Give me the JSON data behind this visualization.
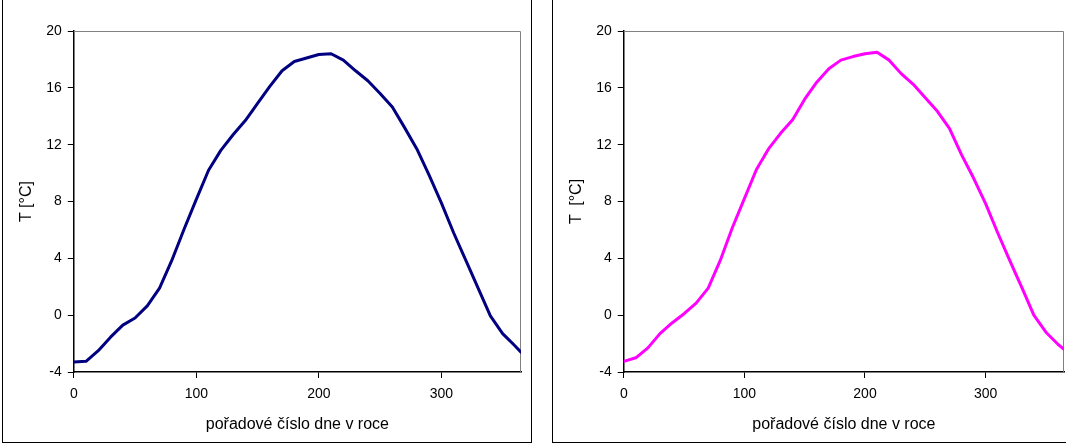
{
  "chart_data": [
    {
      "type": "line",
      "xlabel": "pořadové číslo dne v roce",
      "ylabel": "T [°C]",
      "xlim": [
        0,
        365
      ],
      "xticks": [
        0,
        100,
        200,
        300
      ],
      "ylim": [
        -4,
        20
      ],
      "yticks": [
        -4,
        0,
        4,
        8,
        12,
        16,
        20
      ],
      "grid": false,
      "legend": false,
      "marker": "none",
      "line_style": "solid",
      "x": [
        0,
        10,
        20,
        30,
        40,
        50,
        60,
        70,
        80,
        90,
        100,
        110,
        120,
        130,
        140,
        150,
        160,
        170,
        180,
        190,
        200,
        210,
        220,
        230,
        240,
        250,
        260,
        270,
        280,
        290,
        300,
        310,
        320,
        330,
        340,
        350,
        360,
        365
      ],
      "series": [
        {
          "color": "#000080",
          "values": [
            -3.3,
            -3.25,
            -2.5,
            -1.55,
            -0.7,
            -0.2,
            0.65,
            1.9,
            3.85,
            6.05,
            8.15,
            10.2,
            11.6,
            12.7,
            13.7,
            14.9,
            16.1,
            17.2,
            17.85,
            18.1,
            18.35,
            18.4,
            17.95,
            17.2,
            16.5,
            15.6,
            14.65,
            13.2,
            11.7,
            9.85,
            7.9,
            5.8,
            3.85,
            1.9,
            -0.05,
            -1.3,
            -2.15,
            -2.6
          ]
        }
      ]
    },
    {
      "type": "line",
      "xlabel": "pořadové číslo dne v roce",
      "ylabel": "T  [°C]",
      "xlim": [
        0,
        365
      ],
      "xticks": [
        0,
        100,
        200,
        300
      ],
      "ylim": [
        -4,
        20
      ],
      "yticks": [
        -4,
        0,
        4,
        8,
        12,
        16,
        20
      ],
      "grid": false,
      "legend": false,
      "marker": "none",
      "line_style": "solid",
      "x": [
        0,
        10,
        20,
        30,
        40,
        50,
        60,
        70,
        80,
        90,
        100,
        110,
        120,
        130,
        140,
        150,
        160,
        170,
        180,
        190,
        200,
        210,
        220,
        230,
        240,
        250,
        260,
        270,
        280,
        290,
        300,
        310,
        320,
        330,
        340,
        350,
        360,
        365
      ],
      "series": [
        {
          "color": "#ff00ff",
          "values": [
            -3.25,
            -3.0,
            -2.3,
            -1.3,
            -0.55,
            0.1,
            0.85,
            1.9,
            3.85,
            6.15,
            8.2,
            10.25,
            11.7,
            12.8,
            13.75,
            15.2,
            16.4,
            17.35,
            17.95,
            18.2,
            18.4,
            18.5,
            17.95,
            17.0,
            16.25,
            15.3,
            14.35,
            13.15,
            11.3,
            9.65,
            7.85,
            5.8,
            3.85,
            1.95,
            0,
            -1.2,
            -2.05,
            -2.4
          ]
        }
      ]
    }
  ]
}
